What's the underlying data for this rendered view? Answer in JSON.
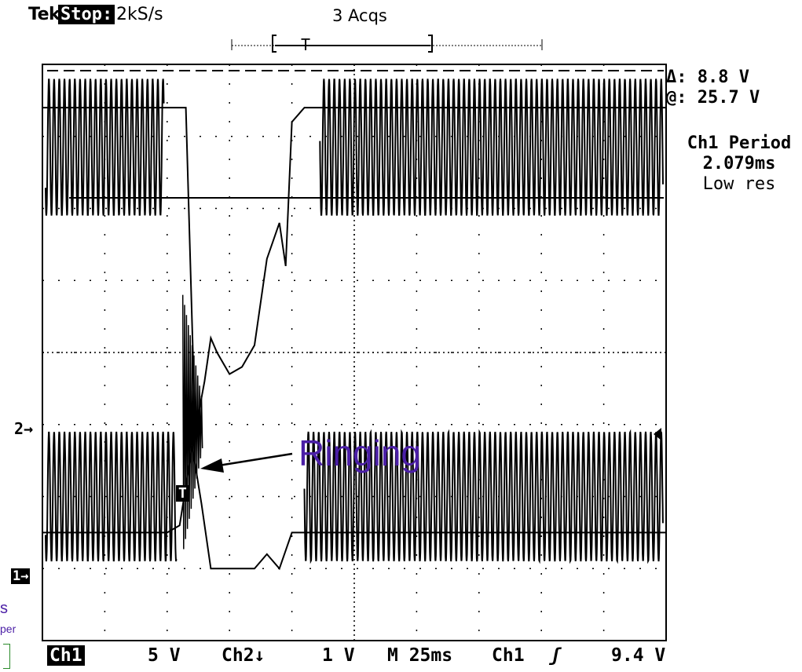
{
  "header": {
    "brand": "Tek",
    "run_state": "Stop:",
    "sample_rate": "2kS/s",
    "acquisitions": "3 Acqs"
  },
  "measurements": {
    "delta": "Δ: 8.8 V",
    "at": "@: 25.7 V",
    "period_title": "Ch1 Period",
    "period_value": "2.079ms",
    "resolution": "Low res"
  },
  "markers": {
    "ch2": "2→",
    "ch1": "1→",
    "trigger": "T"
  },
  "annotation": {
    "text": "Ringing"
  },
  "cropped_text": {
    "line1": "s",
    "line2": "per"
  },
  "footer": {
    "ch1_label": "Ch1",
    "ch1_scale": "5 V",
    "ch2_label": "Ch2↓",
    "ch2_scale": "1 V",
    "timebase": "M 25ms",
    "trig_source": "Ch1",
    "trig_slope": "ʃ",
    "trig_level": "9.4 V"
  },
  "chart_data": {
    "type": "line",
    "title": "",
    "xlabel": "",
    "ylabel": "",
    "x_divisions": 10,
    "y_divisions": 8,
    "x_range_div": [
      0,
      10
    ],
    "y_range_div": [
      -4,
      4
    ],
    "grid": true,
    "series": [
      {
        "name": "Ch1",
        "color": "#000000",
        "channel_ground_div": 3.0,
        "trace_upper": {
          "x_div": [
            0,
            1.9,
            2.1,
            2.3,
            2.45,
            2.6,
            2.7,
            2.8,
            3.0,
            3.2,
            3.4,
            3.6,
            3.8,
            3.9,
            4.0,
            4.2,
            4.5,
            10
          ],
          "y_div": [
            3.4,
            3.4,
            3.4,
            3.4,
            -1.1,
            -0.4,
            0.2,
            0.0,
            -0.3,
            -0.2,
            0.1,
            1.3,
            1.8,
            1.2,
            3.2,
            3.4,
            3.4,
            3.4
          ]
        },
        "trace_lower": {
          "x_div": [
            0,
            2.0,
            2.2,
            2.4,
            2.55,
            2.7,
            2.9,
            3.4,
            3.6,
            3.8,
            4.0,
            10
          ],
          "y_div": [
            -2.5,
            -2.5,
            -2.4,
            -1.3,
            -2.1,
            -3.0,
            -3.0,
            -3.0,
            -2.8,
            -3.0,
            -2.5,
            -2.5
          ]
        }
      },
      {
        "name": "Ch2",
        "color": "#000000",
        "baseline_div": 2.5,
        "period_div": 0.0832,
        "period_ms": 2.079
      }
    ]
  }
}
